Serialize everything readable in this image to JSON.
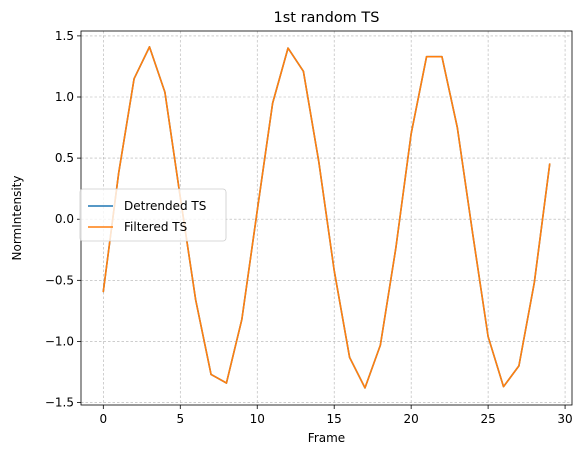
{
  "chart_data": {
    "type": "line",
    "title": "1st random TS",
    "xlabel": "Frame",
    "ylabel": "NormIntensity",
    "xlim": [
      -1.45,
      30.45
    ],
    "ylim": [
      -1.52,
      1.54
    ],
    "xticks": [
      0,
      5,
      10,
      15,
      20,
      25,
      30
    ],
    "xtick_labels": [
      "0",
      "5",
      "10",
      "15",
      "20",
      "25",
      "30"
    ],
    "yticks": [
      -1.5,
      -1.0,
      -0.5,
      0.0,
      0.5,
      1.0,
      1.5
    ],
    "ytick_labels": [
      "−1.5",
      "−1.0",
      "−0.5",
      "0.0",
      "0.5",
      "1.0",
      "1.5"
    ],
    "grid": true,
    "legend_position": "center-left",
    "x": [
      0,
      1,
      2,
      3,
      4,
      5,
      6,
      7,
      8,
      9,
      10,
      11,
      12,
      13,
      14,
      15,
      16,
      17,
      18,
      19,
      20,
      21,
      22,
      23,
      24,
      25,
      26,
      27,
      28,
      29
    ],
    "series": [
      {
        "name": "Detrended TS",
        "color": "#1f77b4",
        "values": [
          -0.59,
          0.38,
          1.15,
          1.41,
          1.04,
          0.18,
          -0.66,
          -1.27,
          -1.34,
          -0.82,
          0.07,
          0.95,
          1.4,
          1.21,
          0.47,
          -0.42,
          -1.13,
          -1.38,
          -1.03,
          -0.24,
          0.7,
          1.33,
          1.33,
          0.75,
          -0.12,
          -0.96,
          -1.37,
          -1.2,
          -0.52,
          0.45
        ]
      },
      {
        "name": "Filtered TS",
        "color": "#ff7f0e",
        "values": [
          -0.59,
          0.38,
          1.15,
          1.41,
          1.04,
          0.18,
          -0.66,
          -1.27,
          -1.34,
          -0.82,
          0.07,
          0.95,
          1.4,
          1.21,
          0.47,
          -0.42,
          -1.13,
          -1.38,
          -1.03,
          -0.24,
          0.7,
          1.33,
          1.33,
          0.75,
          -0.12,
          -0.96,
          -1.37,
          -1.2,
          -0.52,
          0.45
        ]
      }
    ]
  }
}
